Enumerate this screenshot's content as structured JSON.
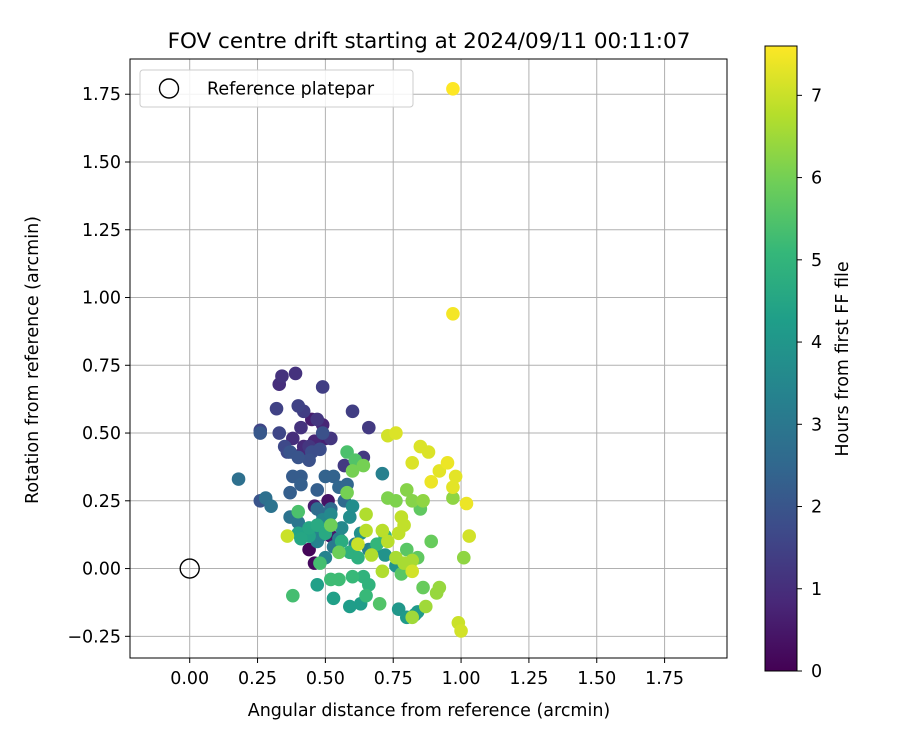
{
  "chart_data": {
    "type": "scatter",
    "title": "FOV centre drift starting at 2024/09/11 00:11:07",
    "xlabel": "Angular distance from reference (arcmin)",
    "ylabel": "Rotation from reference (arcmin)",
    "xlim": [
      -0.22,
      1.98
    ],
    "ylim": [
      -0.33,
      1.88
    ],
    "xticks": [
      0.0,
      0.25,
      0.5,
      0.75,
      1.0,
      1.25,
      1.5,
      1.75
    ],
    "xtick_labels": [
      "0.00",
      "0.25",
      "0.50",
      "0.75",
      "1.00",
      "1.25",
      "1.50",
      "1.75"
    ],
    "yticks": [
      -0.25,
      0.0,
      0.25,
      0.5,
      0.75,
      1.0,
      1.25,
      1.5,
      1.75
    ],
    "ytick_labels": [
      "−0.25",
      "0.00",
      "0.25",
      "0.50",
      "0.75",
      "1.00",
      "1.25",
      "1.50",
      "1.75"
    ],
    "grid": true,
    "legend": {
      "placement": "top-left",
      "entries": [
        {
          "label": "Reference platepar",
          "marker": "open-circle"
        }
      ]
    },
    "reference_point": {
      "x": 0.0,
      "y": 0.0,
      "label": "Reference platepar"
    },
    "colorbar": {
      "label": "Hours from first FF file",
      "range": [
        0,
        7.6
      ],
      "ticks": [
        0,
        1,
        2,
        3,
        4,
        5,
        6,
        7
      ],
      "colormap": "viridis",
      "colors": [
        "#440154",
        "#482878",
        "#3e4989",
        "#31688e",
        "#26828e",
        "#1f9e89",
        "#35b779",
        "#6ece58",
        "#b5de2b",
        "#fde725"
      ]
    },
    "points": [
      {
        "x": 0.44,
        "y": 0.07,
        "c": 0.1
      },
      {
        "x": 0.46,
        "y": 0.02,
        "c": 0.2
      },
      {
        "x": 0.47,
        "y": 0.11,
        "c": 0.3
      },
      {
        "x": 0.51,
        "y": 0.25,
        "c": 0.4
      },
      {
        "x": 0.52,
        "y": 0.12,
        "c": 0.5
      },
      {
        "x": 0.46,
        "y": 0.23,
        "c": 0.6
      },
      {
        "x": 0.45,
        "y": 0.55,
        "c": 0.6
      },
      {
        "x": 0.5,
        "y": 0.48,
        "c": 0.7
      },
      {
        "x": 0.49,
        "y": 0.53,
        "c": 0.8
      },
      {
        "x": 0.46,
        "y": 0.47,
        "c": 0.8
      },
      {
        "x": 0.42,
        "y": 0.45,
        "c": 0.9
      },
      {
        "x": 0.41,
        "y": 0.42,
        "c": 0.9
      },
      {
        "x": 0.38,
        "y": 0.48,
        "c": 1.0
      },
      {
        "x": 0.33,
        "y": 0.68,
        "c": 1.0
      },
      {
        "x": 0.34,
        "y": 0.71,
        "c": 1.1
      },
      {
        "x": 0.39,
        "y": 0.72,
        "c": 1.1
      },
      {
        "x": 0.41,
        "y": 0.52,
        "c": 1.1
      },
      {
        "x": 0.44,
        "y": 0.45,
        "c": 1.2
      },
      {
        "x": 0.47,
        "y": 0.55,
        "c": 1.2
      },
      {
        "x": 0.52,
        "y": 0.48,
        "c": 1.2
      },
      {
        "x": 0.57,
        "y": 0.38,
        "c": 1.3
      },
      {
        "x": 0.64,
        "y": 0.41,
        "c": 1.3
      },
      {
        "x": 0.66,
        "y": 0.52,
        "c": 1.3
      },
      {
        "x": 0.6,
        "y": 0.58,
        "c": 1.4
      },
      {
        "x": 0.49,
        "y": 0.67,
        "c": 1.4
      },
      {
        "x": 0.42,
        "y": 0.58,
        "c": 1.4
      },
      {
        "x": 0.4,
        "y": 0.6,
        "c": 1.5
      },
      {
        "x": 0.32,
        "y": 0.59,
        "c": 1.5
      },
      {
        "x": 0.26,
        "y": 0.51,
        "c": 1.6
      },
      {
        "x": 0.33,
        "y": 0.5,
        "c": 1.6
      },
      {
        "x": 0.35,
        "y": 0.45,
        "c": 1.7
      },
      {
        "x": 0.36,
        "y": 0.43,
        "c": 1.7
      },
      {
        "x": 0.45,
        "y": 0.43,
        "c": 1.8
      },
      {
        "x": 0.48,
        "y": 0.44,
        "c": 1.8
      },
      {
        "x": 0.49,
        "y": 0.5,
        "c": 1.9
      },
      {
        "x": 0.44,
        "y": 0.4,
        "c": 1.9
      },
      {
        "x": 0.37,
        "y": 0.43,
        "c": 2.0
      },
      {
        "x": 0.4,
        "y": 0.41,
        "c": 2.0
      },
      {
        "x": 0.26,
        "y": 0.25,
        "c": 2.0
      },
      {
        "x": 0.26,
        "y": 0.5,
        "c": 2.1
      },
      {
        "x": 0.38,
        "y": 0.34,
        "c": 2.2
      },
      {
        "x": 0.41,
        "y": 0.34,
        "c": 2.2
      },
      {
        "x": 0.41,
        "y": 0.31,
        "c": 2.3
      },
      {
        "x": 0.37,
        "y": 0.28,
        "c": 2.3
      },
      {
        "x": 0.47,
        "y": 0.29,
        "c": 2.3
      },
      {
        "x": 0.5,
        "y": 0.34,
        "c": 2.4
      },
      {
        "x": 0.53,
        "y": 0.34,
        "c": 2.4
      },
      {
        "x": 0.55,
        "y": 0.3,
        "c": 2.5
      },
      {
        "x": 0.58,
        "y": 0.31,
        "c": 2.5
      },
      {
        "x": 0.57,
        "y": 0.25,
        "c": 2.6
      },
      {
        "x": 0.52,
        "y": 0.22,
        "c": 2.6
      },
      {
        "x": 0.49,
        "y": 0.2,
        "c": 2.7
      },
      {
        "x": 0.47,
        "y": 0.22,
        "c": 2.7
      },
      {
        "x": 0.18,
        "y": 0.33,
        "c": 2.8
      },
      {
        "x": 0.28,
        "y": 0.26,
        "c": 2.8
      },
      {
        "x": 0.3,
        "y": 0.23,
        "c": 2.9
      },
      {
        "x": 0.37,
        "y": 0.19,
        "c": 2.9
      },
      {
        "x": 0.4,
        "y": 0.17,
        "c": 3.0
      },
      {
        "x": 0.46,
        "y": 0.15,
        "c": 3.0
      },
      {
        "x": 0.48,
        "y": 0.12,
        "c": 3.1
      },
      {
        "x": 0.53,
        "y": 0.08,
        "c": 3.1
      },
      {
        "x": 0.55,
        "y": 0.11,
        "c": 3.2
      },
      {
        "x": 0.61,
        "y": 0.09,
        "c": 3.2
      },
      {
        "x": 0.66,
        "y": 0.07,
        "c": 3.3
      },
      {
        "x": 0.71,
        "y": 0.35,
        "c": 3.3
      },
      {
        "x": 0.5,
        "y": 0.04,
        "c": 3.4
      },
      {
        "x": 0.47,
        "y": 0.1,
        "c": 3.4
      },
      {
        "x": 0.45,
        "y": 0.14,
        "c": 3.5
      },
      {
        "x": 0.49,
        "y": 0.18,
        "c": 3.5
      },
      {
        "x": 0.52,
        "y": 0.2,
        "c": 3.6
      },
      {
        "x": 0.56,
        "y": 0.15,
        "c": 3.6
      },
      {
        "x": 0.59,
        "y": 0.19,
        "c": 3.7
      },
      {
        "x": 0.6,
        "y": 0.23,
        "c": 3.7
      },
      {
        "x": 0.63,
        "y": 0.13,
        "c": 3.8
      },
      {
        "x": 0.68,
        "y": 0.07,
        "c": 3.8
      },
      {
        "x": 0.72,
        "y": 0.05,
        "c": 3.9
      },
      {
        "x": 0.76,
        "y": 0.01,
        "c": 3.9
      },
      {
        "x": 0.77,
        "y": -0.15,
        "c": 4.0
      },
      {
        "x": 0.83,
        "y": -0.17,
        "c": 4.0
      },
      {
        "x": 0.84,
        "y": -0.16,
        "c": 4.1
      },
      {
        "x": 0.8,
        "y": -0.18,
        "c": 4.1
      },
      {
        "x": 0.63,
        "y": -0.13,
        "c": 4.2
      },
      {
        "x": 0.59,
        "y": -0.14,
        "c": 4.2
      },
      {
        "x": 0.53,
        "y": -0.11,
        "c": 4.3
      },
      {
        "x": 0.47,
        "y": -0.06,
        "c": 4.3
      },
      {
        "x": 0.44,
        "y": 0.12,
        "c": 4.4
      },
      {
        "x": 0.4,
        "y": 0.13,
        "c": 4.4
      },
      {
        "x": 0.41,
        "y": 0.11,
        "c": 4.5
      },
      {
        "x": 0.44,
        "y": 0.15,
        "c": 4.5
      },
      {
        "x": 0.47,
        "y": 0.16,
        "c": 4.6
      },
      {
        "x": 0.5,
        "y": 0.13,
        "c": 4.6
      },
      {
        "x": 0.52,
        "y": 0.16,
        "c": 4.7
      },
      {
        "x": 0.56,
        "y": 0.1,
        "c": 4.7
      },
      {
        "x": 0.59,
        "y": 0.06,
        "c": 4.8
      },
      {
        "x": 0.62,
        "y": 0.04,
        "c": 4.8
      },
      {
        "x": 0.64,
        "y": -0.03,
        "c": 4.9
      },
      {
        "x": 0.66,
        "y": -0.06,
        "c": 4.9
      },
      {
        "x": 0.69,
        "y": 0.09,
        "c": 5.0
      },
      {
        "x": 0.72,
        "y": 0.12,
        "c": 5.0
      },
      {
        "x": 0.65,
        "y": -0.1,
        "c": 5.1
      },
      {
        "x": 0.6,
        "y": -0.03,
        "c": 5.1
      },
      {
        "x": 0.55,
        "y": -0.04,
        "c": 5.2
      },
      {
        "x": 0.52,
        "y": -0.04,
        "c": 5.2
      },
      {
        "x": 0.48,
        "y": 0.02,
        "c": 5.3
      },
      {
        "x": 0.38,
        "y": -0.1,
        "c": 5.3
      },
      {
        "x": 0.4,
        "y": 0.21,
        "c": 5.4
      },
      {
        "x": 0.58,
        "y": 0.43,
        "c": 5.4
      },
      {
        "x": 0.61,
        "y": 0.4,
        "c": 5.5
      },
      {
        "x": 0.7,
        "y": -0.13,
        "c": 5.5
      },
      {
        "x": 0.78,
        "y": -0.02,
        "c": 5.6
      },
      {
        "x": 0.8,
        "y": 0.07,
        "c": 5.6
      },
      {
        "x": 0.84,
        "y": 0.04,
        "c": 5.7
      },
      {
        "x": 0.85,
        "y": 0.22,
        "c": 5.7
      },
      {
        "x": 0.86,
        "y": -0.07,
        "c": 5.8
      },
      {
        "x": 0.89,
        "y": 0.1,
        "c": 5.8
      },
      {
        "x": 0.52,
        "y": 0.16,
        "c": 5.9
      },
      {
        "x": 0.55,
        "y": 0.06,
        "c": 5.9
      },
      {
        "x": 0.58,
        "y": 0.28,
        "c": 6.0
      },
      {
        "x": 0.6,
        "y": 0.36,
        "c": 6.0
      },
      {
        "x": 0.64,
        "y": 0.38,
        "c": 6.0
      },
      {
        "x": 0.73,
        "y": 0.26,
        "c": 6.1
      },
      {
        "x": 0.76,
        "y": 0.25,
        "c": 6.1
      },
      {
        "x": 0.8,
        "y": 0.29,
        "c": 6.2
      },
      {
        "x": 0.82,
        "y": 0.25,
        "c": 6.2
      },
      {
        "x": 0.86,
        "y": 0.25,
        "c": 6.3
      },
      {
        "x": 0.97,
        "y": 0.26,
        "c": 6.3
      },
      {
        "x": 1.01,
        "y": 0.04,
        "c": 6.3
      },
      {
        "x": 0.91,
        "y": -0.09,
        "c": 6.4
      },
      {
        "x": 0.92,
        "y": -0.07,
        "c": 6.4
      },
      {
        "x": 0.87,
        "y": -0.14,
        "c": 6.5
      },
      {
        "x": 0.82,
        "y": -0.18,
        "c": 6.5
      },
      {
        "x": 0.82,
        "y": 0.03,
        "c": 6.6
      },
      {
        "x": 0.79,
        "y": 0.02,
        "c": 6.6
      },
      {
        "x": 0.76,
        "y": 0.04,
        "c": 6.6
      },
      {
        "x": 0.71,
        "y": -0.01,
        "c": 6.7
      },
      {
        "x": 0.67,
        "y": 0.05,
        "c": 6.7
      },
      {
        "x": 0.65,
        "y": 0.2,
        "c": 6.7
      },
      {
        "x": 0.65,
        "y": 0.14,
        "c": 6.8
      },
      {
        "x": 0.71,
        "y": 0.14,
        "c": 6.8
      },
      {
        "x": 0.73,
        "y": 0.1,
        "c": 6.8
      },
      {
        "x": 0.77,
        "y": 0.13,
        "c": 6.9
      },
      {
        "x": 0.79,
        "y": 0.16,
        "c": 6.9
      },
      {
        "x": 0.78,
        "y": 0.19,
        "c": 6.9
      },
      {
        "x": 0.62,
        "y": 0.09,
        "c": 7.0
      },
      {
        "x": 0.36,
        "y": 0.12,
        "c": 7.0
      },
      {
        "x": 0.99,
        "y": -0.2,
        "c": 7.0
      },
      {
        "x": 1.0,
        "y": -0.23,
        "c": 7.1
      },
      {
        "x": 1.03,
        "y": 0.12,
        "c": 7.1
      },
      {
        "x": 0.82,
        "y": -0.01,
        "c": 7.1
      },
      {
        "x": 0.73,
        "y": 0.49,
        "c": 7.1
      },
      {
        "x": 0.76,
        "y": 0.5,
        "c": 7.2
      },
      {
        "x": 0.85,
        "y": 0.45,
        "c": 7.2
      },
      {
        "x": 0.88,
        "y": 0.43,
        "c": 7.2
      },
      {
        "x": 0.82,
        "y": 0.39,
        "c": 7.2
      },
      {
        "x": 0.92,
        "y": 0.36,
        "c": 7.3
      },
      {
        "x": 0.98,
        "y": 0.34,
        "c": 7.3
      },
      {
        "x": 0.97,
        "y": 0.3,
        "c": 7.3
      },
      {
        "x": 0.89,
        "y": 0.32,
        "c": 7.4
      },
      {
        "x": 0.95,
        "y": 0.39,
        "c": 7.4
      },
      {
        "x": 1.02,
        "y": 0.24,
        "c": 7.4
      },
      {
        "x": 0.97,
        "y": 0.94,
        "c": 7.5
      },
      {
        "x": 0.97,
        "y": 1.77,
        "c": 7.6
      }
    ]
  }
}
